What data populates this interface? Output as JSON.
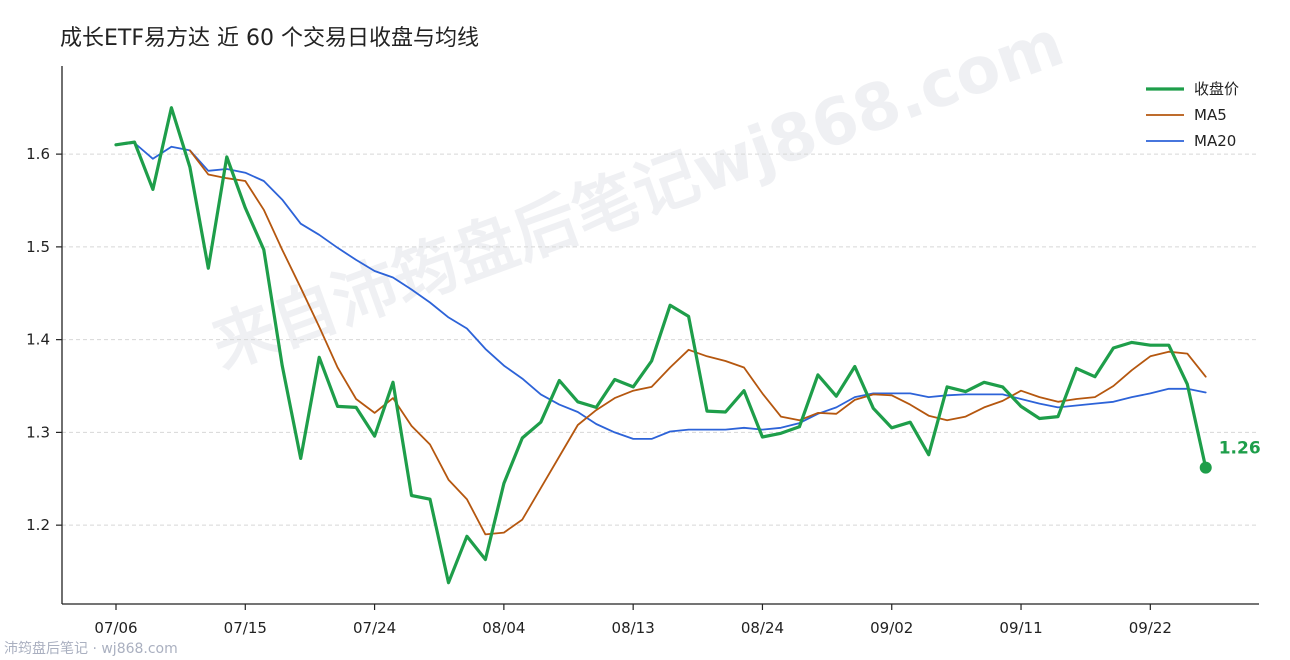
{
  "chart_data": {
    "type": "line",
    "title": "成长ETF易方达 近 60 个交易日收盘与均线",
    "xlabel": "",
    "ylabel": "",
    "ylim": [
      1.115,
      1.695
    ],
    "x_ticks": [
      "07/06",
      "07/15",
      "07/24",
      "08/04",
      "08/13",
      "08/24",
      "09/02",
      "09/11",
      "09/22"
    ],
    "x_tick_index": [
      0,
      7,
      14,
      21,
      28,
      35,
      42,
      49,
      56
    ],
    "y_ticks": [
      1.2,
      1.3,
      1.4,
      1.5,
      1.6
    ],
    "y_tick_labels": [
      "1.2",
      "1.3",
      "1.4",
      "1.5",
      "1.6"
    ],
    "grid": "horizontal dashed",
    "legend_position": "top-right",
    "legend": [
      "收盘价",
      "MA5",
      "MA20"
    ],
    "series": [
      {
        "name": "收盘价",
        "color": "#1e9e4a",
        "values": [
          1.61,
          1.613,
          1.562,
          1.65,
          1.586,
          1.477,
          1.597,
          1.542,
          1.497,
          1.372,
          1.272,
          1.381,
          1.328,
          1.327,
          1.296,
          1.354,
          1.232,
          1.228,
          1.138,
          1.188,
          1.163,
          1.245,
          1.294,
          1.311,
          1.356,
          1.333,
          1.327,
          1.357,
          1.349,
          1.377,
          1.437,
          1.425,
          1.323,
          1.322,
          1.345,
          1.295,
          1.299,
          1.306,
          1.362,
          1.339,
          1.371,
          1.326,
          1.305,
          1.311,
          1.276,
          1.349,
          1.344,
          1.354,
          1.349,
          1.328,
          1.315,
          1.317,
          1.369,
          1.36,
          1.391,
          1.397,
          1.394,
          1.394,
          1.352,
          1.262
        ]
      },
      {
        "name": "MA5",
        "color": "#b5570f",
        "values": [
          null,
          null,
          null,
          null,
          1.604,
          1.578,
          1.574,
          1.571,
          1.54,
          1.497,
          1.456,
          1.414,
          1.37,
          1.336,
          1.321,
          1.337,
          1.307,
          1.287,
          1.249,
          1.228,
          1.19,
          1.192,
          1.206,
          1.24,
          1.274,
          1.308,
          1.324,
          1.337,
          1.345,
          1.349,
          1.37,
          1.389,
          1.382,
          1.377,
          1.37,
          1.342,
          1.317,
          1.313,
          1.321,
          1.32,
          1.335,
          1.341,
          1.34,
          1.33,
          1.318,
          1.313,
          1.317,
          1.327,
          1.334,
          1.345,
          1.338,
          1.333,
          1.336,
          1.338,
          1.35,
          1.367,
          1.382,
          1.387,
          1.385,
          1.36
        ]
      },
      {
        "name": "MA20",
        "color": "#2d63d8",
        "values": [
          1.61,
          1.612,
          1.595,
          1.608,
          1.604,
          1.582,
          1.584,
          1.58,
          1.571,
          1.551,
          1.525,
          1.513,
          1.499,
          1.486,
          1.474,
          1.467,
          1.454,
          1.44,
          1.424,
          1.412,
          1.39,
          1.372,
          1.358,
          1.341,
          1.33,
          1.322,
          1.309,
          1.3,
          1.293,
          1.293,
          1.301,
          1.303,
          1.303,
          1.303,
          1.305,
          1.303,
          1.305,
          1.31,
          1.32,
          1.327,
          1.338,
          1.342,
          1.342,
          1.342,
          1.338,
          1.34,
          1.341,
          1.341,
          1.341,
          1.336,
          1.331,
          1.327,
          1.329,
          1.331,
          1.333,
          1.338,
          1.342,
          1.347,
          1.347,
          1.343
        ]
      }
    ],
    "end_annotation": {
      "text": "1.26",
      "value": 1.262,
      "index": 59,
      "color": "#1e9e4a"
    }
  },
  "watermark": {
    "text": "来自沛筠盘后笔记wj868.com",
    "color": "#aab0c0"
  },
  "footer": {
    "text": "沛筠盘后笔记 · wj868.com"
  }
}
